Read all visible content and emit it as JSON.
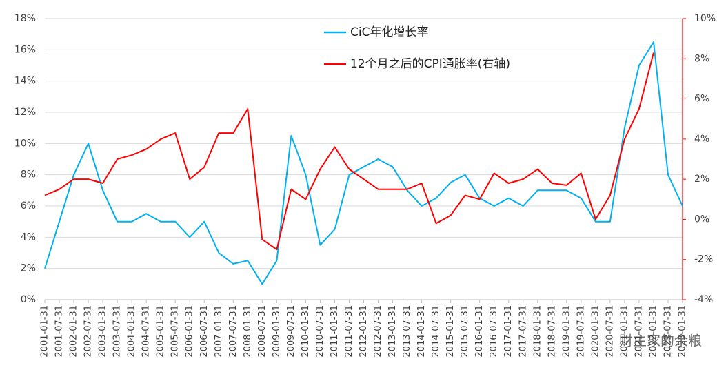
{
  "chart_data": {
    "type": "line",
    "x": [
      "2001-01-31",
      "2001-07-31",
      "2002-01-31",
      "2002-07-31",
      "2003-01-31",
      "2003-07-31",
      "2004-01-31",
      "2004-07-31",
      "2005-01-31",
      "2005-07-31",
      "2006-01-31",
      "2006-07-31",
      "2007-01-31",
      "2007-07-31",
      "2008-01-31",
      "2008-07-31",
      "2009-01-31",
      "2009-07-31",
      "2010-01-31",
      "2010-07-31",
      "2011-01-31",
      "2011-07-31",
      "2012-01-31",
      "2012-07-31",
      "2013-01-31",
      "2013-07-31",
      "2014-01-31",
      "2014-07-31",
      "2015-01-31",
      "2015-07-31",
      "2016-01-31",
      "2016-07-31",
      "2017-01-31",
      "2017-07-31",
      "2018-01-31",
      "2018-07-31",
      "2019-01-31",
      "2019-07-31",
      "2020-01-31",
      "2020-07-31",
      "2021-01-31",
      "2021-07-31",
      "2022-01-31",
      "2022-07-31",
      "2023-01-31"
    ],
    "series": [
      {
        "name": "CiC年化增长率",
        "color": "#00b0f0",
        "values": [
          2.0,
          5.0,
          8.0,
          10.0,
          7.0,
          5.0,
          5.0,
          5.5,
          5.0,
          5.0,
          4.0,
          5.0,
          3.0,
          2.3,
          2.5,
          1.0,
          2.5,
          10.5,
          8.0,
          3.5,
          4.5,
          8.0,
          8.5,
          9.0,
          8.5,
          7.0,
          6.0,
          6.5,
          7.5,
          8.0,
          6.5,
          6.0,
          6.5,
          6.0,
          7.0,
          7.0,
          7.0,
          6.5,
          5.0,
          5.0,
          11.0,
          15.0,
          16.5,
          8.0,
          6.0
        ]
      },
      {
        "name": "12个月之后的CPI通胀率(右轴)",
        "color": "#ff0000",
        "axis": "y2",
        "values": [
          1.2,
          1.5,
          2.0,
          2.0,
          1.8,
          3.0,
          3.2,
          3.5,
          4.0,
          4.3,
          2.0,
          2.6,
          4.3,
          4.3,
          5.5,
          -1.0,
          -1.5,
          1.5,
          1.0,
          2.5,
          3.6,
          2.5,
          2.0,
          1.5,
          1.5,
          1.5,
          1.8,
          -0.2,
          0.2,
          1.2,
          1.0,
          2.3,
          1.8,
          2.0,
          2.5,
          1.8,
          1.7,
          2.3,
          0.0,
          1.2,
          4.0,
          5.5,
          8.3,
          null,
          null
        ]
      }
    ],
    "ylim": [
      0,
      18
    ],
    "yticks": [
      {
        "value": 0,
        "label": "0%"
      },
      {
        "value": 2,
        "label": "2%"
      },
      {
        "value": 4,
        "label": "4%"
      },
      {
        "value": 6,
        "label": "6%"
      },
      {
        "value": 8,
        "label": "8%"
      },
      {
        "value": 10,
        "label": "10%"
      },
      {
        "value": 12,
        "label": "12%"
      },
      {
        "value": 14,
        "label": "14%"
      },
      {
        "value": 16,
        "label": "16%"
      },
      {
        "value": 18,
        "label": "18%"
      }
    ],
    "y2lim": [
      -4,
      10
    ],
    "y2ticks": [
      {
        "value": -4,
        "label": "-4%"
      },
      {
        "value": -2,
        "label": "-2%"
      },
      {
        "value": 0,
        "label": "0%"
      },
      {
        "value": 2,
        "label": "2%"
      },
      {
        "value": 4,
        "label": "4%"
      },
      {
        "value": 6,
        "label": "6%"
      },
      {
        "value": 8,
        "label": "8%"
      },
      {
        "value": 10,
        "label": "10%"
      }
    ],
    "grid": true,
    "watermark": "财主家的余粮"
  }
}
